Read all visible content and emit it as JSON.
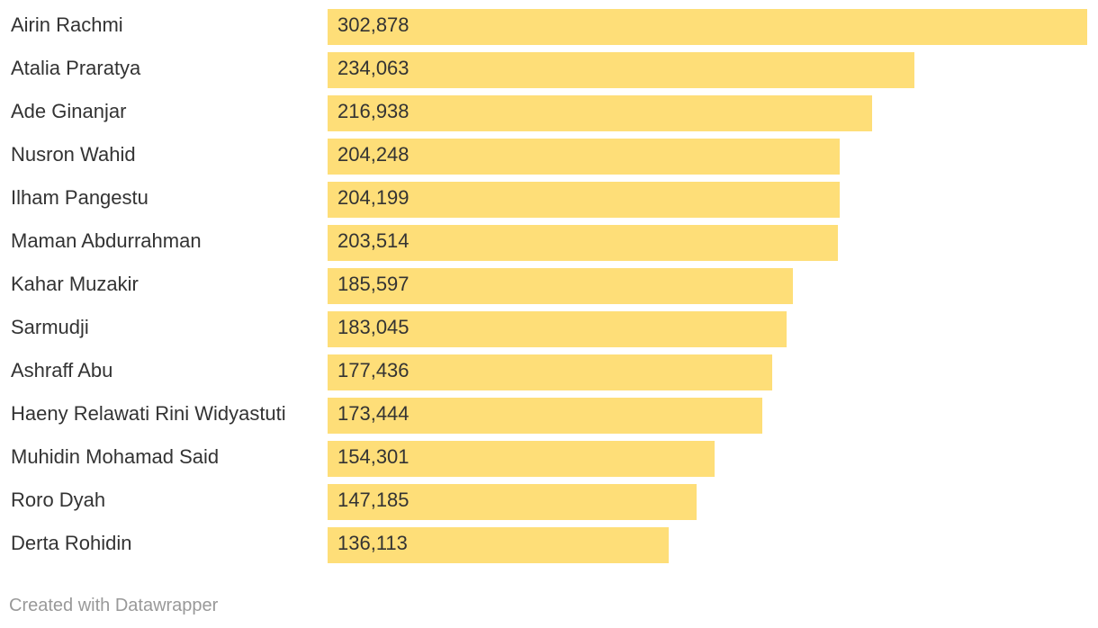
{
  "chart_data": {
    "type": "bar",
    "orientation": "horizontal",
    "categories": [
      "Airin Rachmi",
      "Atalia Praratya",
      "Ade Ginanjar",
      "Nusron Wahid",
      "Ilham Pangestu",
      "Maman Abdurrahman",
      "Kahar Muzakir",
      "Sarmudji",
      "Ashraff Abu",
      "Haeny Relawati Rini Widyastuti",
      "Muhidin Mohamad Said",
      "Roro Dyah",
      "Derta Rohidin"
    ],
    "values": [
      302878,
      234063,
      216938,
      204248,
      204199,
      203514,
      185597,
      183045,
      177436,
      173444,
      154301,
      147185,
      136113
    ],
    "value_labels": [
      "302,878",
      "234,063",
      "216,938",
      "204,248",
      "204,199",
      "203,514",
      "185,597",
      "183,045",
      "177,436",
      "173,444",
      "154,301",
      "147,185",
      "136,113"
    ],
    "xlim": [
      0,
      302878
    ],
    "bar_color": "#fede78",
    "grid": false
  },
  "footer": {
    "credit": "Created with Datawrapper"
  }
}
